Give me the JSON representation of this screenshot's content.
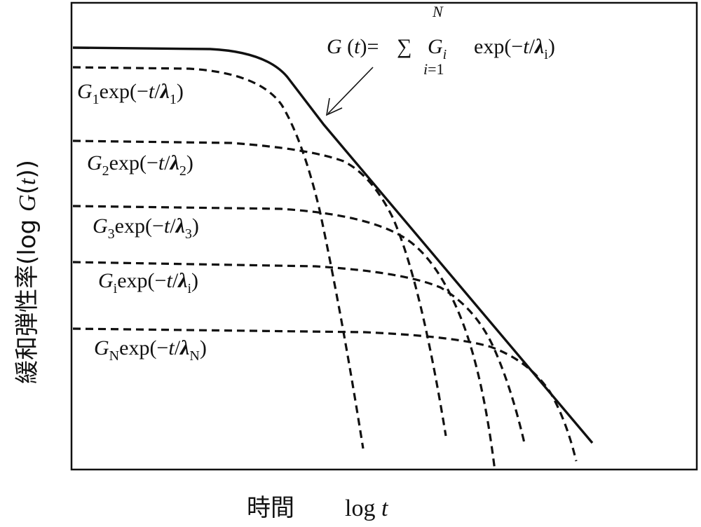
{
  "diagram": {
    "y_axis_label": "緩和弾性率(log G(t))",
    "x_axis_label_jp": "時間",
    "x_axis_label_var": "log t",
    "equation": "G (t)=∑ G_i exp(−t/λ_i), i=1…N",
    "curves": [
      {
        "id": "total",
        "style": "solid",
        "label": "G (t)=∑ Gi exp(−t/λi)"
      },
      {
        "id": "mode-1",
        "style": "dashed",
        "label": "G1exp(−t/λ1)"
      },
      {
        "id": "mode-2",
        "style": "dashed",
        "label": "G2exp(−t/λ2)"
      },
      {
        "id": "mode-3",
        "style": "dashed",
        "label": "G3exp(−t/λ3)"
      },
      {
        "id": "mode-i",
        "style": "dashed",
        "label": "Giexp(−t/λi)"
      },
      {
        "id": "mode-N",
        "style": "dashed",
        "label": "GNexp(−t/λN)"
      }
    ]
  }
}
